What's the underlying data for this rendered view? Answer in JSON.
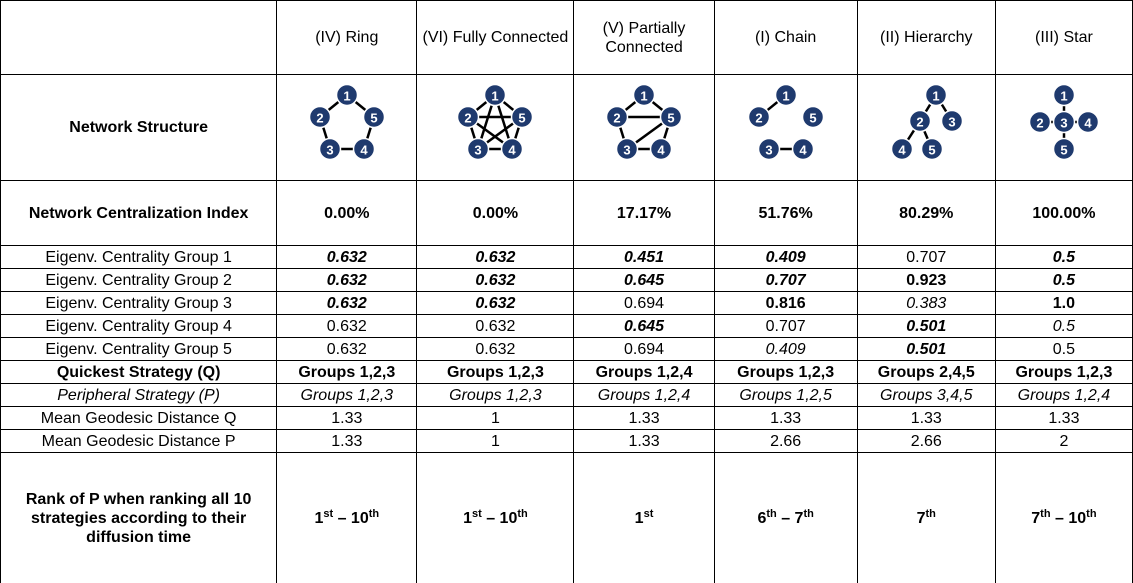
{
  "table": {
    "columns": [
      "(IV) Ring",
      "(VI) Fully Connected",
      "(V) Partially Connected",
      "(I) Chain",
      "(II) Hierarchy",
      "(III) Star"
    ],
    "structure_row": {
      "label": "Network Structure",
      "networks": [
        {
          "nodes": [
            "1",
            "2",
            "3",
            "4",
            "5"
          ],
          "edges": [
            [
              0,
              1
            ],
            [
              1,
              2
            ],
            [
              2,
              3
            ],
            [
              3,
              4
            ],
            [
              4,
              0
            ]
          ]
        },
        {
          "nodes": [
            "1",
            "2",
            "3",
            "4",
            "5"
          ],
          "edges": [
            [
              0,
              1
            ],
            [
              1,
              2
            ],
            [
              2,
              3
            ],
            [
              3,
              4
            ],
            [
              4,
              0
            ],
            [
              0,
              2
            ],
            [
              0,
              3
            ],
            [
              1,
              3
            ],
            [
              1,
              4
            ],
            [
              2,
              4
            ]
          ]
        },
        {
          "nodes": [
            "1",
            "2",
            "3",
            "4",
            "5"
          ],
          "edges": [
            [
              0,
              1
            ],
            [
              1,
              2
            ],
            [
              2,
              3
            ],
            [
              3,
              4
            ],
            [
              4,
              0
            ],
            [
              1,
              4
            ],
            [
              2,
              4
            ]
          ]
        },
        {
          "nodes": [
            "1",
            "2",
            "3",
            "4",
            "5"
          ],
          "edges": [
            [
              0,
              1
            ],
            [
              2,
              3
            ]
          ]
        },
        {
          "nodes": [
            "1",
            "2",
            "3",
            "4",
            "5"
          ],
          "edges": [
            [
              0,
              1
            ],
            [
              0,
              2
            ],
            [
              1,
              3
            ],
            [
              1,
              4
            ]
          ]
        },
        {
          "nodes": [
            "1",
            "2",
            "3",
            "4",
            "5"
          ],
          "edges": [
            [
              2,
              0
            ],
            [
              2,
              1
            ],
            [
              2,
              3
            ],
            [
              2,
              4
            ]
          ]
        }
      ]
    },
    "rows": [
      {
        "label": "Network Centralization Index",
        "cells": [
          "0.00%",
          "0.00%",
          "17.17%",
          "51.76%",
          "80.29%",
          "100.00%"
        ]
      },
      {
        "label": "Eigenv. Centrality Group 1",
        "cells": [
          "0.632",
          "0.632",
          "0.451",
          "0.409",
          "0.707",
          "0.5"
        ]
      },
      {
        "label": "Eigenv. Centrality Group 2",
        "cells": [
          "0.632",
          "0.632",
          "0.645",
          "0.707",
          "0.923",
          "0.5"
        ]
      },
      {
        "label": "Eigenv. Centrality Group 3",
        "cells": [
          "0.632",
          "0.632",
          "0.694",
          "0.816",
          "0.383",
          "1.0"
        ]
      },
      {
        "label": "Eigenv. Centrality Group 4",
        "cells": [
          "0.632",
          "0.632",
          "0.645",
          "0.707",
          "0.501",
          "0.5"
        ]
      },
      {
        "label": "Eigenv. Centrality Group 5",
        "cells": [
          "0.632",
          "0.632",
          "0.694",
          "0.409",
          "0.501",
          "0.5"
        ]
      },
      {
        "label": "Quickest Strategy (Q)",
        "cells": [
          "Groups 1,2,3",
          "Groups 1,2,3",
          "Groups 1,2,4",
          "Groups 1,2,3",
          "Groups 2,4,5",
          "Groups 1,2,3"
        ]
      },
      {
        "label": "Peripheral Strategy (P)",
        "cells": [
          "Groups 1,2,3",
          "Groups 1,2,3",
          "Groups 1,2,4",
          "Groups 1,2,5",
          "Groups 3,4,5",
          "Groups 1,2,4"
        ]
      },
      {
        "label": "Mean Geodesic Distance Q",
        "cells": [
          "1.33",
          "1",
          "1.33",
          "1.33",
          "1.33",
          "1.33"
        ]
      },
      {
        "label": "Mean Geodesic Distance P",
        "cells": [
          "1.33",
          "1",
          "1.33",
          "2.66",
          "2.66",
          "2"
        ]
      }
    ],
    "rank_row": {
      "label": "Rank of P when ranking all 10 strategies according to their diffusion time",
      "cells": [
        [
          {
            "text": "1"
          },
          {
            "sup": "st"
          },
          {
            "text": " – 10"
          },
          {
            "sup": "th"
          }
        ],
        [
          {
            "text": "1"
          },
          {
            "sup": "st"
          },
          {
            "text": " – 10"
          },
          {
            "sup": "th"
          }
        ],
        [
          {
            "text": "1"
          },
          {
            "sup": "st"
          }
        ],
        [
          {
            "text": "6"
          },
          {
            "sup": "th"
          },
          {
            "text": " – 7"
          },
          {
            "sup": "th"
          }
        ],
        [
          {
            "text": "7"
          },
          {
            "sup": "th"
          }
        ],
        [
          {
            "text": "7"
          },
          {
            "sup": "th"
          },
          {
            "text": " – 10"
          },
          {
            "sup": "th"
          }
        ]
      ]
    }
  }
}
